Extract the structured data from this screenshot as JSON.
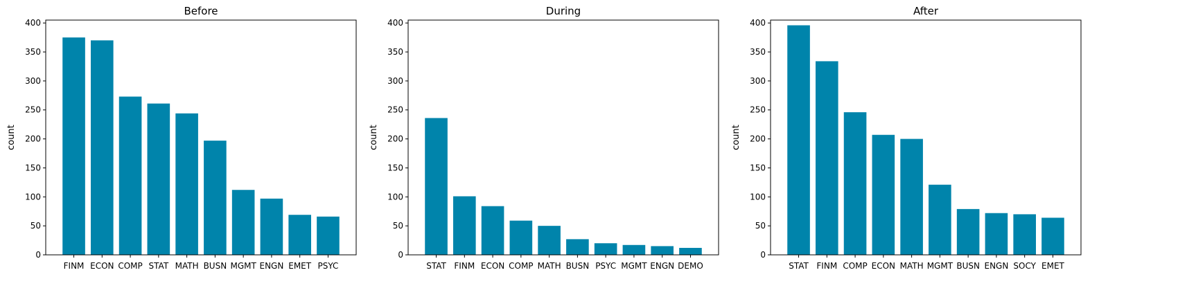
{
  "colors": {
    "bar": "#0084AB",
    "axis": "#000000",
    "background": "#ffffff"
  },
  "chart_data": [
    {
      "type": "bar",
      "title": "Before",
      "xlabel": "",
      "ylabel": "count",
      "ylim": [
        0,
        405
      ],
      "yticks": [
        0,
        50,
        100,
        150,
        200,
        250,
        300,
        350,
        400
      ],
      "categories": [
        "FINM",
        "ECON",
        "COMP",
        "STAT",
        "MATH",
        "BUSN",
        "MGMT",
        "ENGN",
        "EMET",
        "PSYC"
      ],
      "values": [
        375,
        370,
        273,
        261,
        244,
        197,
        112,
        97,
        69,
        66
      ],
      "grid": false,
      "legend": "none"
    },
    {
      "type": "bar",
      "title": "During",
      "xlabel": "",
      "ylabel": "count",
      "ylim": [
        0,
        405
      ],
      "yticks": [
        0,
        50,
        100,
        150,
        200,
        250,
        300,
        350,
        400
      ],
      "categories": [
        "STAT",
        "FINM",
        "ECON",
        "COMP",
        "MATH",
        "BUSN",
        "PSYC",
        "MGMT",
        "ENGN",
        "DEMO"
      ],
      "values": [
        236,
        101,
        84,
        59,
        50,
        27,
        20,
        17,
        15,
        12
      ],
      "grid": false,
      "legend": "none"
    },
    {
      "type": "bar",
      "title": "After",
      "xlabel": "",
      "ylabel": "count",
      "ylim": [
        0,
        405
      ],
      "yticks": [
        0,
        50,
        100,
        150,
        200,
        250,
        300,
        350,
        400
      ],
      "categories": [
        "STAT",
        "FINM",
        "COMP",
        "ECON",
        "MATH",
        "MGMT",
        "BUSN",
        "ENGN",
        "SOCY",
        "EMET"
      ],
      "values": [
        396,
        334,
        246,
        207,
        200,
        121,
        79,
        72,
        70,
        64
      ],
      "grid": false,
      "legend": "none"
    }
  ]
}
